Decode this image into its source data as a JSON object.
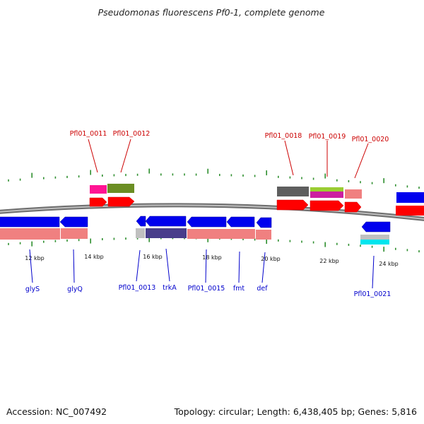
{
  "title": "Pseudomonas fluorescens Pf0-1, complete genome",
  "footer": {
    "accession": "Accession: NC_007492",
    "topology": "Topology: circular; Length: 6,438,405 bp; Genes: 5,816"
  },
  "scale": {
    "unit": "kbp",
    "labels": [
      "12 kbp",
      "14 kbp",
      "16 kbp",
      "18 kbp",
      "20 kbp",
      "22 kbp",
      "24 kbp"
    ]
  },
  "genes_top": [
    "Pfl01_0011",
    "Pfl01_0012",
    "Pfl01_0018",
    "Pfl01_0019",
    "Pfl01_0020"
  ],
  "genes_bottom": [
    "glyS",
    "glyQ",
    "Pfl01_0013",
    "trkA",
    "Pfl01_0015",
    "fmt",
    "def",
    "Pfl01_0021"
  ],
  "colors": {
    "backbone": "#8c8c8c",
    "tick": "#2f8f2f",
    "forward_cds": "#ff0000",
    "reverse_cds": "#0000ee",
    "label_forward": "#cc0000",
    "label_reverse": "#0000cc"
  }
}
